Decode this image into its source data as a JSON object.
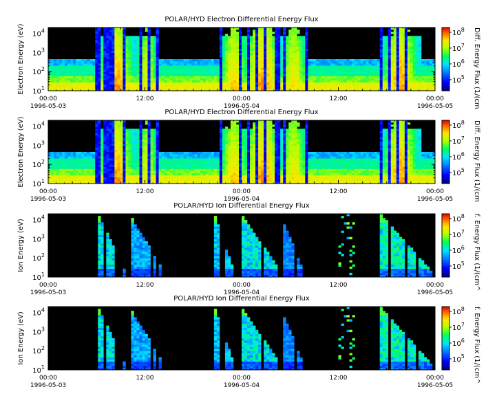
{
  "chart_data": [
    {
      "type": "heatmap",
      "title": "POLAR/HYD  Electron Differential Energy Flux",
      "ylabel": "Electron Energy (eV)",
      "colorbar_label": "Diff. Energy Flux (1/(cm",
      "yscale": "log",
      "ylim": [
        10,
        20000
      ],
      "y_ticks": [
        {
          "value": 10,
          "base": "10",
          "exp": "1"
        },
        {
          "value": 100,
          "base": "10",
          "exp": "2"
        },
        {
          "value": 1000,
          "base": "10",
          "exp": "3"
        },
        {
          "value": 10000,
          "base": "10",
          "exp": "4"
        }
      ],
      "x_ticks": [
        {
          "hour": 0,
          "time": "00:00",
          "date": "1996-05-03"
        },
        {
          "hour": 12,
          "time": "12:00",
          "date": ""
        },
        {
          "hour": 24,
          "time": "00:00",
          "date": "1996-05-04"
        },
        {
          "hour": 36,
          "time": "12:00",
          "date": ""
        },
        {
          "hour": 48,
          "time": "00:00",
          "date": "1996-05-05"
        }
      ],
      "xlim_hours": [
        0,
        48
      ],
      "colorbar_ticks": [
        {
          "value": 100000,
          "base": "10",
          "exp": "5"
        },
        {
          "value": 1000000,
          "base": "10",
          "exp": "6"
        },
        {
          "value": 10000000,
          "base": "10",
          "exp": "7"
        },
        {
          "value": 100000000,
          "base": "10",
          "exp": "8"
        }
      ],
      "clim": [
        20000,
        200000000
      ]
    },
    {
      "type": "heatmap",
      "title": "POLAR/HYD  Electron Differential Energy Flux",
      "ylabel": "Electron Energy (eV)",
      "colorbar_label": "Diff. Energy Flux (1/(cm",
      "yscale": "log",
      "ylim": [
        10,
        20000
      ],
      "y_ticks": [
        {
          "value": 10,
          "base": "10",
          "exp": "1"
        },
        {
          "value": 100,
          "base": "10",
          "exp": "2"
        },
        {
          "value": 1000,
          "base": "10",
          "exp": "3"
        },
        {
          "value": 10000,
          "base": "10",
          "exp": "4"
        }
      ],
      "x_ticks": [
        {
          "hour": 0,
          "time": "00:00",
          "date": "1996-05-03"
        },
        {
          "hour": 12,
          "time": "12:00",
          "date": ""
        },
        {
          "hour": 24,
          "time": "00:00",
          "date": "1996-05-04"
        },
        {
          "hour": 36,
          "time": "12:00",
          "date": ""
        },
        {
          "hour": 48,
          "time": "00:00",
          "date": "1996-05-05"
        }
      ],
      "xlim_hours": [
        0,
        48
      ],
      "colorbar_ticks": [
        {
          "value": 100000,
          "base": "10",
          "exp": "5"
        },
        {
          "value": 1000000,
          "base": "10",
          "exp": "6"
        },
        {
          "value": 10000000,
          "base": "10",
          "exp": "7"
        },
        {
          "value": 100000000,
          "base": "10",
          "exp": "8"
        }
      ],
      "clim": [
        20000,
        200000000
      ]
    },
    {
      "type": "heatmap",
      "title": "POLAR/HYD  Ion Differential Energy Flux",
      "ylabel": "Ion Energy (eV)",
      "colorbar_label": "f. Energy Flux (1/(cm^",
      "yscale": "log",
      "ylim": [
        10,
        20000
      ],
      "y_ticks": [
        {
          "value": 10,
          "base": "10",
          "exp": "1"
        },
        {
          "value": 100,
          "base": "10",
          "exp": "2"
        },
        {
          "value": 1000,
          "base": "10",
          "exp": "3"
        },
        {
          "value": 10000,
          "base": "10",
          "exp": "4"
        }
      ],
      "x_ticks": [
        {
          "hour": 0,
          "time": "00:00",
          "date": "1996-05-03"
        },
        {
          "hour": 12,
          "time": "12:00",
          "date": ""
        },
        {
          "hour": 24,
          "time": "00:00",
          "date": "1996-05-04"
        },
        {
          "hour": 36,
          "time": "12:00",
          "date": ""
        },
        {
          "hour": 48,
          "time": "00:00",
          "date": "1996-05-05"
        }
      ],
      "xlim_hours": [
        0,
        48
      ],
      "colorbar_ticks": [
        {
          "value": 100000,
          "base": "10",
          "exp": "5"
        },
        {
          "value": 1000000,
          "base": "10",
          "exp": "6"
        },
        {
          "value": 10000000,
          "base": "10",
          "exp": "7"
        },
        {
          "value": 100000000,
          "base": "10",
          "exp": "8"
        }
      ],
      "clim": [
        20000,
        200000000
      ]
    },
    {
      "type": "heatmap",
      "title": "POLAR/HYD  Ion Differential Energy Flux",
      "ylabel": "Ion Energy (eV)",
      "colorbar_label": "f. Energy Flux (1/(cm^",
      "yscale": "log",
      "ylim": [
        10,
        20000
      ],
      "y_ticks": [
        {
          "value": 10,
          "base": "10",
          "exp": "1"
        },
        {
          "value": 100,
          "base": "10",
          "exp": "2"
        },
        {
          "value": 1000,
          "base": "10",
          "exp": "3"
        },
        {
          "value": 10000,
          "base": "10",
          "exp": "4"
        }
      ],
      "x_ticks": [
        {
          "hour": 0,
          "time": "00:00",
          "date": "1996-05-03"
        },
        {
          "hour": 12,
          "time": "12:00",
          "date": ""
        },
        {
          "hour": 24,
          "time": "00:00",
          "date": "1996-05-04"
        },
        {
          "hour": 36,
          "time": "12:00",
          "date": ""
        },
        {
          "hour": 48,
          "time": "00:00",
          "date": "1996-05-05"
        }
      ],
      "xlim_hours": [
        0,
        48
      ],
      "colorbar_ticks": [
        {
          "value": 100000,
          "base": "10",
          "exp": "5"
        },
        {
          "value": 1000000,
          "base": "10",
          "exp": "6"
        },
        {
          "value": 10000000,
          "base": "10",
          "exp": "7"
        },
        {
          "value": 100000000,
          "base": "10",
          "exp": "8"
        }
      ],
      "clim": [
        20000,
        200000000
      ]
    }
  ]
}
